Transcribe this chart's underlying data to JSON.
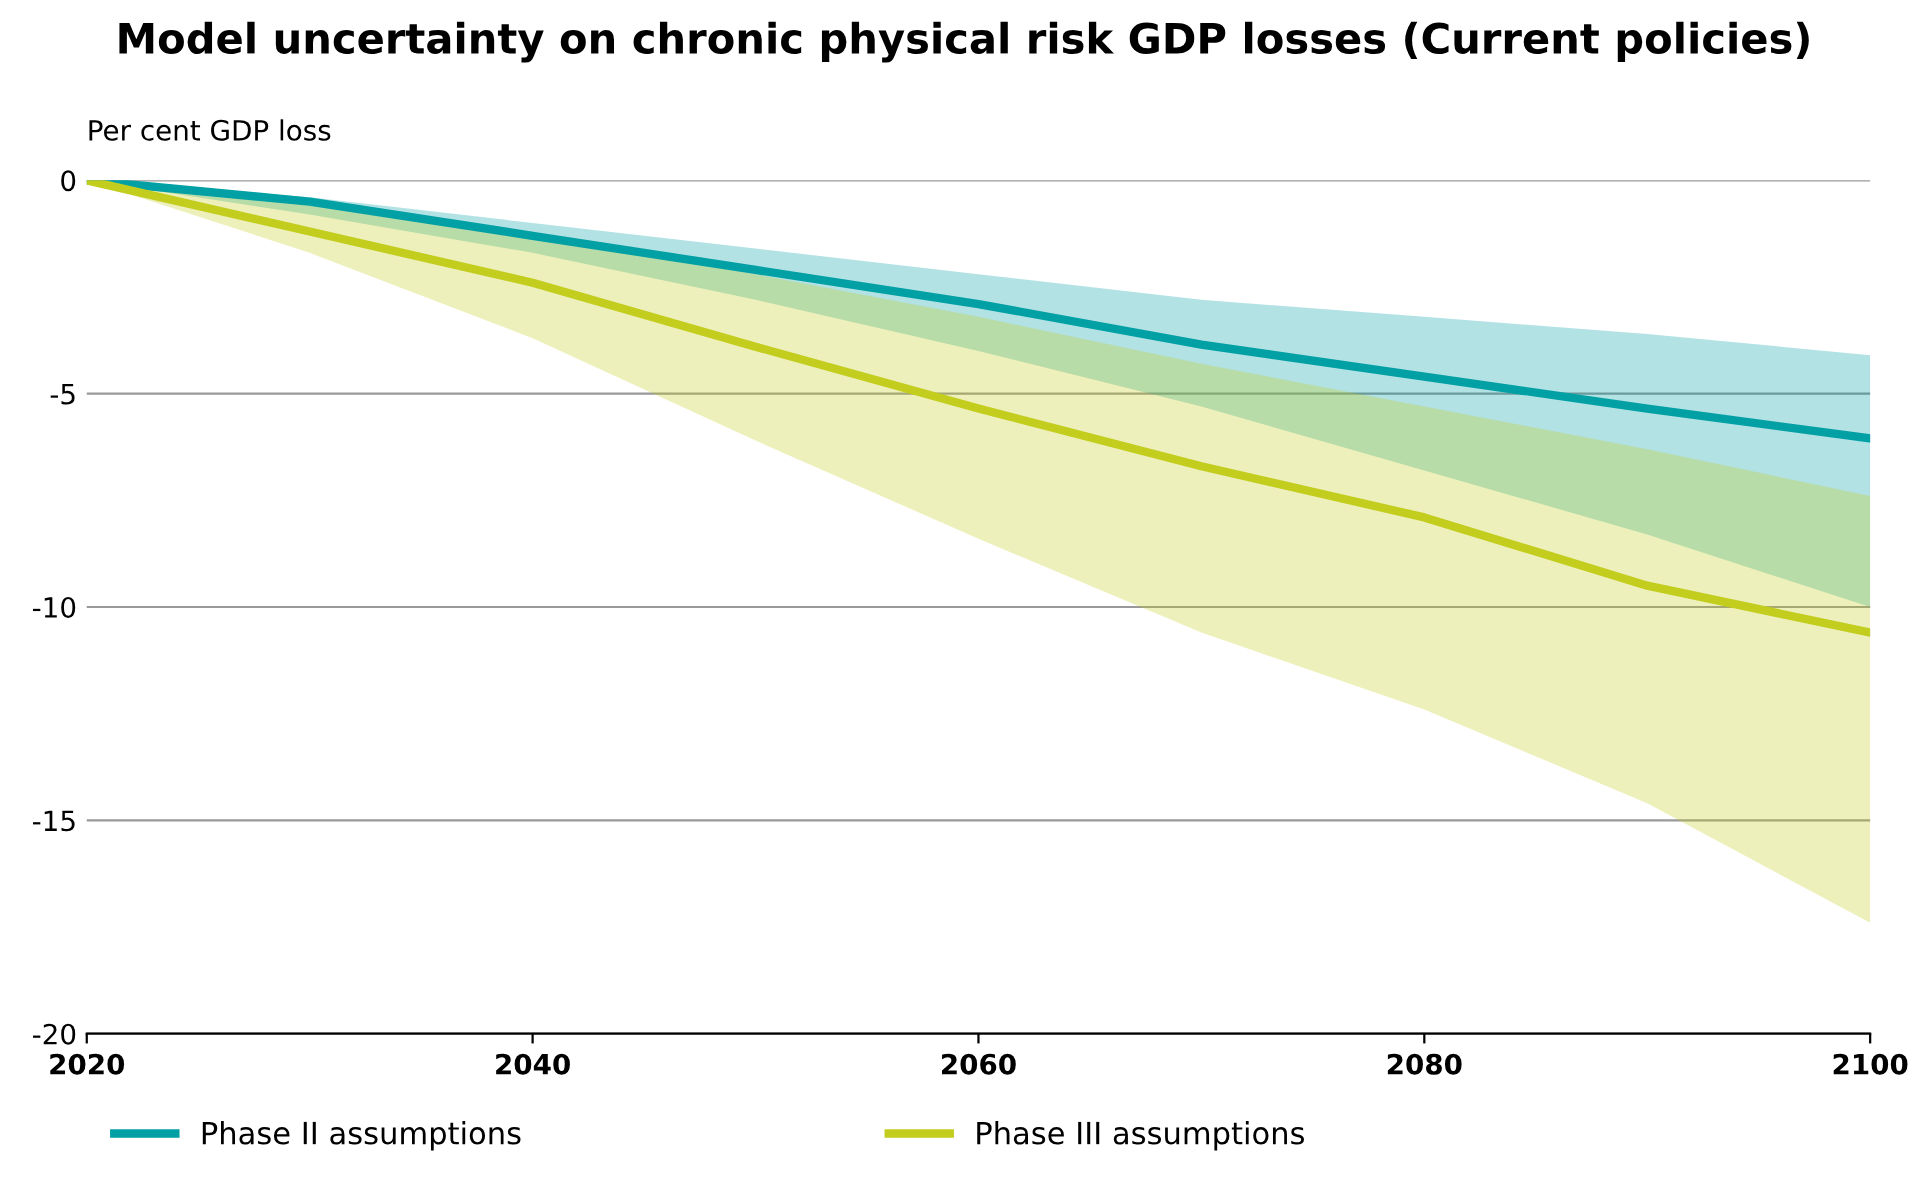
{
  "chart_data": {
    "type": "line",
    "title": "Model uncertainty on chronic physical risk GDP losses (Current policies)",
    "ylabel": "Per cent GDP loss",
    "x": [
      2020,
      2030,
      2040,
      2050,
      2060,
      2070,
      2080,
      2090,
      2100
    ],
    "series": [
      {
        "name": "Phase II assumptions",
        "color": "#00a0a4",
        "values": [
          0,
          -0.5,
          -1.3,
          -2.1,
          -2.9,
          -3.85,
          -4.6,
          -5.35,
          -6.05
        ],
        "lower": [
          0,
          -0.8,
          -1.7,
          -2.8,
          -4.0,
          -5.3,
          -6.8,
          -8.3,
          -10.0
        ],
        "upper": [
          0,
          -0.4,
          -1.0,
          -1.6,
          -2.2,
          -2.8,
          -3.2,
          -3.6,
          -4.1
        ]
      },
      {
        "name": "Phase III assumptions",
        "color": "#c3cd1e",
        "values": [
          0,
          -1.2,
          -2.4,
          -3.9,
          -5.35,
          -6.7,
          -7.9,
          -9.5,
          -10.6
        ],
        "lower": [
          0,
          -1.7,
          -3.7,
          -6.1,
          -8.4,
          -10.6,
          -12.4,
          -14.6,
          -17.4
        ],
        "upper": [
          0,
          -0.5,
          -1.3,
          -2.2,
          -3.2,
          -4.3,
          -5.3,
          -6.3,
          -7.4
        ]
      }
    ],
    "xlim": [
      2020,
      2100
    ],
    "xticks": [
      2020,
      2040,
      2060,
      2080,
      2100
    ],
    "ylim": [
      -20,
      0
    ],
    "yticks": [
      -20,
      -15,
      -10,
      -5,
      0
    ],
    "grid": "y",
    "legend": "bottom",
    "marker": "none",
    "line_style": "solid"
  }
}
